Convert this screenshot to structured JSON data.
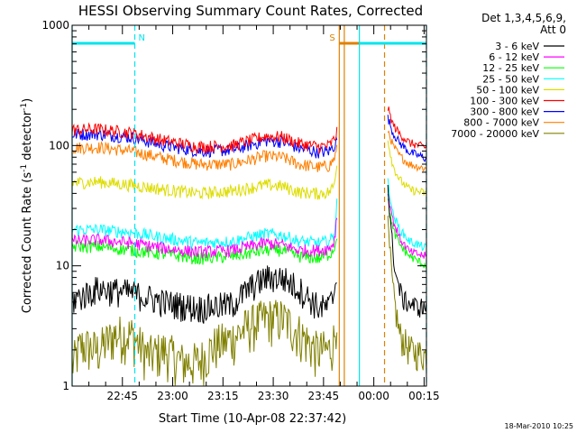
{
  "chart_data": {
    "type": "line",
    "title": "HESSI Observing Summary Count Rates, Corrected",
    "ylabel_pre": "Corrected Count Rate (s",
    "ylabel_sup1": "-1",
    "ylabel_mid": " detector",
    "ylabel_sup2": "-1",
    "ylabel_post": ")",
    "xlabel": "Start Time (10-Apr-08 22:37:42)",
    "timestamp": "18-Mar-2010 10:25",
    "y_scale": "log",
    "ylim": [
      1,
      1000
    ],
    "y_ticks": [
      {
        "value": 1,
        "label": "1"
      },
      {
        "value": 10,
        "label": "10"
      },
      {
        "value": 100,
        "label": "100"
      },
      {
        "value": 1000,
        "label": "1000"
      }
    ],
    "xlim": [
      -7.7,
      98
    ],
    "x_ticks": [
      {
        "value": 7.3,
        "label": "22:45"
      },
      {
        "value": 22.3,
        "label": "23:00"
      },
      {
        "value": 37.3,
        "label": "23:15"
      },
      {
        "value": 52.3,
        "label": "23:30"
      },
      {
        "value": 67.3,
        "label": "23:45"
      },
      {
        "value": 82.3,
        "label": "00:00"
      },
      {
        "value": 97.3,
        "label": "00:15"
      }
    ],
    "legend_title_1": "Det 1,3,4,5,6,9,",
    "legend_title_2": "Att 0",
    "legend_position": "right",
    "series": [
      {
        "name": "3 - 6 keV",
        "color": "#000000",
        "points": [
          [
            -7.7,
            5.2
          ],
          [
            0,
            6.5
          ],
          [
            10,
            6.0
          ],
          [
            20,
            5.0
          ],
          [
            30,
            4.5
          ],
          [
            40,
            4.8
          ],
          [
            45,
            6.5
          ],
          [
            50,
            8.0
          ],
          [
            55,
            8.0
          ],
          [
            60,
            6.5
          ],
          [
            66,
            4.5
          ],
          [
            69,
            4.6
          ],
          [
            70.5,
            6.0
          ],
          [
            71.5,
            11
          ]
        ],
        "points_after": [
          [
            86.5,
            45
          ],
          [
            87.5,
            18
          ],
          [
            89,
            8
          ],
          [
            91,
            5.2
          ],
          [
            95,
            4.6
          ],
          [
            98,
            4.5
          ]
        ]
      },
      {
        "name": "6 - 12 keV",
        "color": "#ff00ff",
        "points": [
          [
            -7.7,
            16
          ],
          [
            0,
            16.5
          ],
          [
            10,
            15.5
          ],
          [
            20,
            14
          ],
          [
            30,
            13
          ],
          [
            40,
            13.5
          ],
          [
            50,
            15.5
          ],
          [
            55,
            15
          ],
          [
            60,
            13.5
          ],
          [
            66,
            13.5
          ],
          [
            69,
            14
          ],
          [
            70.5,
            16
          ],
          [
            71.5,
            30
          ]
        ],
        "points_after": [
          [
            86.5,
            40
          ],
          [
            88,
            24
          ],
          [
            90,
            17
          ],
          [
            93,
            13
          ],
          [
            98,
            12
          ]
        ]
      },
      {
        "name": "12 - 25 keV",
        "color": "#00ff00",
        "points": [
          [
            -7.7,
            14.5
          ],
          [
            0,
            14.5
          ],
          [
            10,
            13.5
          ],
          [
            20,
            12.5
          ],
          [
            30,
            11.5
          ],
          [
            40,
            12
          ],
          [
            50,
            13.5
          ],
          [
            55,
            13.5
          ],
          [
            60,
            12
          ],
          [
            66,
            11.5
          ],
          [
            69,
            12.5
          ],
          [
            70.5,
            14
          ],
          [
            71.5,
            20
          ]
        ],
        "points_after": [
          [
            86.5,
            35
          ],
          [
            88,
            20
          ],
          [
            90,
            15
          ],
          [
            93,
            12
          ],
          [
            98,
            10
          ]
        ]
      },
      {
        "name": "25 - 50 keV",
        "color": "#00ffff",
        "points": [
          [
            -7.7,
            20
          ],
          [
            0,
            20
          ],
          [
            10,
            19
          ],
          [
            20,
            17
          ],
          [
            30,
            15.5
          ],
          [
            40,
            16
          ],
          [
            50,
            18.5
          ],
          [
            55,
            18
          ],
          [
            60,
            16
          ],
          [
            66,
            15.5
          ],
          [
            69,
            16
          ],
          [
            70.5,
            18
          ],
          [
            71.5,
            40
          ]
        ],
        "points_after": [
          [
            86.5,
            50
          ],
          [
            88,
            27
          ],
          [
            90,
            20
          ],
          [
            93,
            16
          ],
          [
            98,
            14
          ]
        ]
      },
      {
        "name": "50 - 100 keV",
        "color": "#dddd00",
        "points": [
          [
            -7.7,
            49
          ],
          [
            0,
            50
          ],
          [
            10,
            47
          ],
          [
            20,
            43
          ],
          [
            30,
            40
          ],
          [
            40,
            42
          ],
          [
            50,
            47
          ],
          [
            55,
            46
          ],
          [
            60,
            41
          ],
          [
            66,
            40
          ],
          [
            69,
            41
          ],
          [
            70.5,
            47
          ],
          [
            71.5,
            85
          ]
        ],
        "points_after": [
          [
            86.5,
            110
          ],
          [
            88,
            68
          ],
          [
            90,
            52
          ],
          [
            93,
            43
          ],
          [
            98,
            40
          ]
        ]
      },
      {
        "name": "100 - 300 keV",
        "color": "#ff0000",
        "points": [
          [
            -7.7,
            135
          ],
          [
            0,
            137
          ],
          [
            10,
            128
          ],
          [
            20,
            110
          ],
          [
            30,
            98
          ],
          [
            40,
            100
          ],
          [
            50,
            120
          ],
          [
            55,
            118
          ],
          [
            60,
            104
          ],
          [
            66,
            98
          ],
          [
            69,
            100
          ],
          [
            70.5,
            112
          ],
          [
            71.5,
            135
          ]
        ],
        "points_after": [
          [
            86.5,
            205
          ],
          [
            88,
            150
          ],
          [
            90,
            125
          ],
          [
            93,
            105
          ],
          [
            98,
            96
          ]
        ]
      },
      {
        "name": "300 - 800 keV",
        "color": "#0000ff",
        "points": [
          [
            -7.7,
            124
          ],
          [
            0,
            125
          ],
          [
            10,
            117
          ],
          [
            20,
            100
          ],
          [
            30,
            90
          ],
          [
            40,
            92
          ],
          [
            50,
            110
          ],
          [
            55,
            108
          ],
          [
            60,
            95
          ],
          [
            66,
            88
          ],
          [
            69,
            90
          ],
          [
            70.5,
            100
          ],
          [
            71.5,
            118
          ]
        ],
        "points_after": [
          [
            86.5,
            170
          ],
          [
            88,
            128
          ],
          [
            90,
            105
          ],
          [
            93,
            88
          ],
          [
            98,
            78
          ]
        ]
      },
      {
        "name": "800 - 7000 keV",
        "color": "#ff7f00",
        "points": [
          [
            -7.7,
            96
          ],
          [
            0,
            97
          ],
          [
            10,
            90
          ],
          [
            20,
            78
          ],
          [
            30,
            70
          ],
          [
            40,
            70
          ],
          [
            50,
            82
          ],
          [
            55,
            80
          ],
          [
            60,
            70
          ],
          [
            66,
            66
          ],
          [
            69,
            68
          ],
          [
            70.5,
            78
          ],
          [
            71.5,
            95
          ]
        ],
        "points_after": [
          [
            86.5,
            135
          ],
          [
            88,
            100
          ],
          [
            90,
            82
          ],
          [
            93,
            70
          ],
          [
            98,
            64
          ]
        ]
      },
      {
        "name": "7000 - 20000 keV",
        "color": "#808000",
        "points": [
          [
            -7.7,
            1.5
          ],
          [
            -5,
            2.2
          ],
          [
            0,
            2.0
          ],
          [
            5,
            2.7
          ],
          [
            10,
            2.7
          ],
          [
            15,
            1.8
          ],
          [
            20,
            2.0
          ],
          [
            25,
            1.6
          ],
          [
            30,
            1.6
          ],
          [
            35,
            2.2
          ],
          [
            40,
            2.5
          ],
          [
            45,
            3.2
          ],
          [
            50,
            3.7
          ],
          [
            55,
            3.7
          ],
          [
            60,
            2.8
          ],
          [
            65,
            2.0
          ],
          [
            69,
            2.0
          ],
          [
            70.5,
            2.5
          ],
          [
            71.5,
            5
          ]
        ],
        "points_after": [
          [
            86.5,
            20
          ],
          [
            88,
            6
          ],
          [
            90,
            2.7
          ],
          [
            93,
            2.0
          ],
          [
            98,
            1.8
          ]
        ]
      }
    ],
    "annotations": [
      {
        "label": "N",
        "color": "#00e5ee",
        "bars": [
          [
            -7.7,
            11
          ]
        ],
        "lines": [
          {
            "x": -7.7,
            "style": "solid"
          },
          {
            "x": 11,
            "style": "dashed"
          }
        ]
      },
      {
        "label": "S",
        "color": "#e08000",
        "bars": [
          [
            72,
            88
          ]
        ],
        "lines": [
          {
            "x": 72,
            "style": "solid"
          },
          {
            "x": 73.5,
            "style": "solid"
          },
          {
            "x": 85.5,
            "style": "dashed"
          }
        ]
      },
      {
        "label": "",
        "color": "#00e5ee",
        "bars": [
          [
            78,
            98
          ]
        ],
        "lines": [
          {
            "x": 78,
            "style": "solid"
          },
          {
            "x": 98,
            "style": "dashed"
          }
        ]
      }
    ]
  }
}
